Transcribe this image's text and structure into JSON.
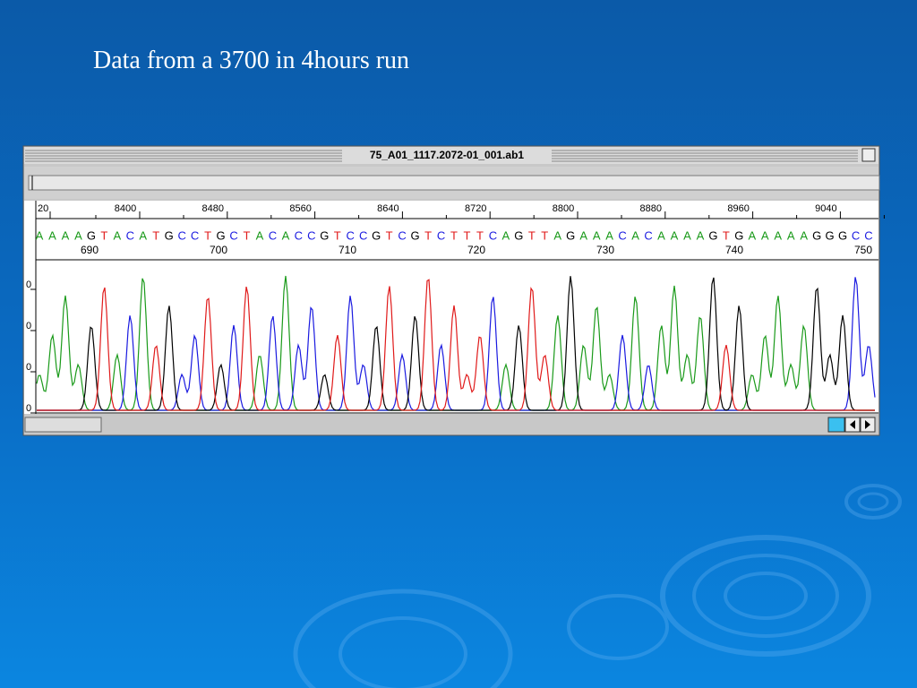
{
  "slide": {
    "title": "Data from a 3700 in 4hours run"
  },
  "window": {
    "title": "75_A01_1117.2072-01_001.ab1"
  },
  "track": {
    "scan_ruler": [
      "20",
      "8400",
      "8480",
      "8560",
      "8640",
      "8720",
      "8800",
      "8880",
      "8960",
      "9040"
    ],
    "bases": [
      "A",
      "A",
      "A",
      "A",
      "G",
      "T",
      "A",
      "C",
      "A",
      "T",
      "G",
      "C",
      "C",
      "T",
      "G",
      "C",
      "T",
      "A",
      "C",
      "A",
      "C",
      "C",
      "G",
      "T",
      "C",
      "C",
      "G",
      "T",
      "C",
      "G",
      "T",
      "C",
      "T",
      "T",
      "T",
      "C",
      "A",
      "G",
      "T",
      "T",
      "A",
      "G",
      "A",
      "A",
      "A",
      "C",
      "A",
      "C",
      "A",
      "A",
      "A",
      "A",
      "G",
      "T",
      "G",
      "A",
      "A",
      "A",
      "A",
      "A",
      "G",
      "G",
      "G",
      "C",
      "C"
    ],
    "positions": [
      "690",
      "700",
      "710",
      "720",
      "730",
      "740",
      "750"
    ],
    "amplitude_labels": [
      "0",
      "0",
      "0",
      "0"
    ]
  }
}
